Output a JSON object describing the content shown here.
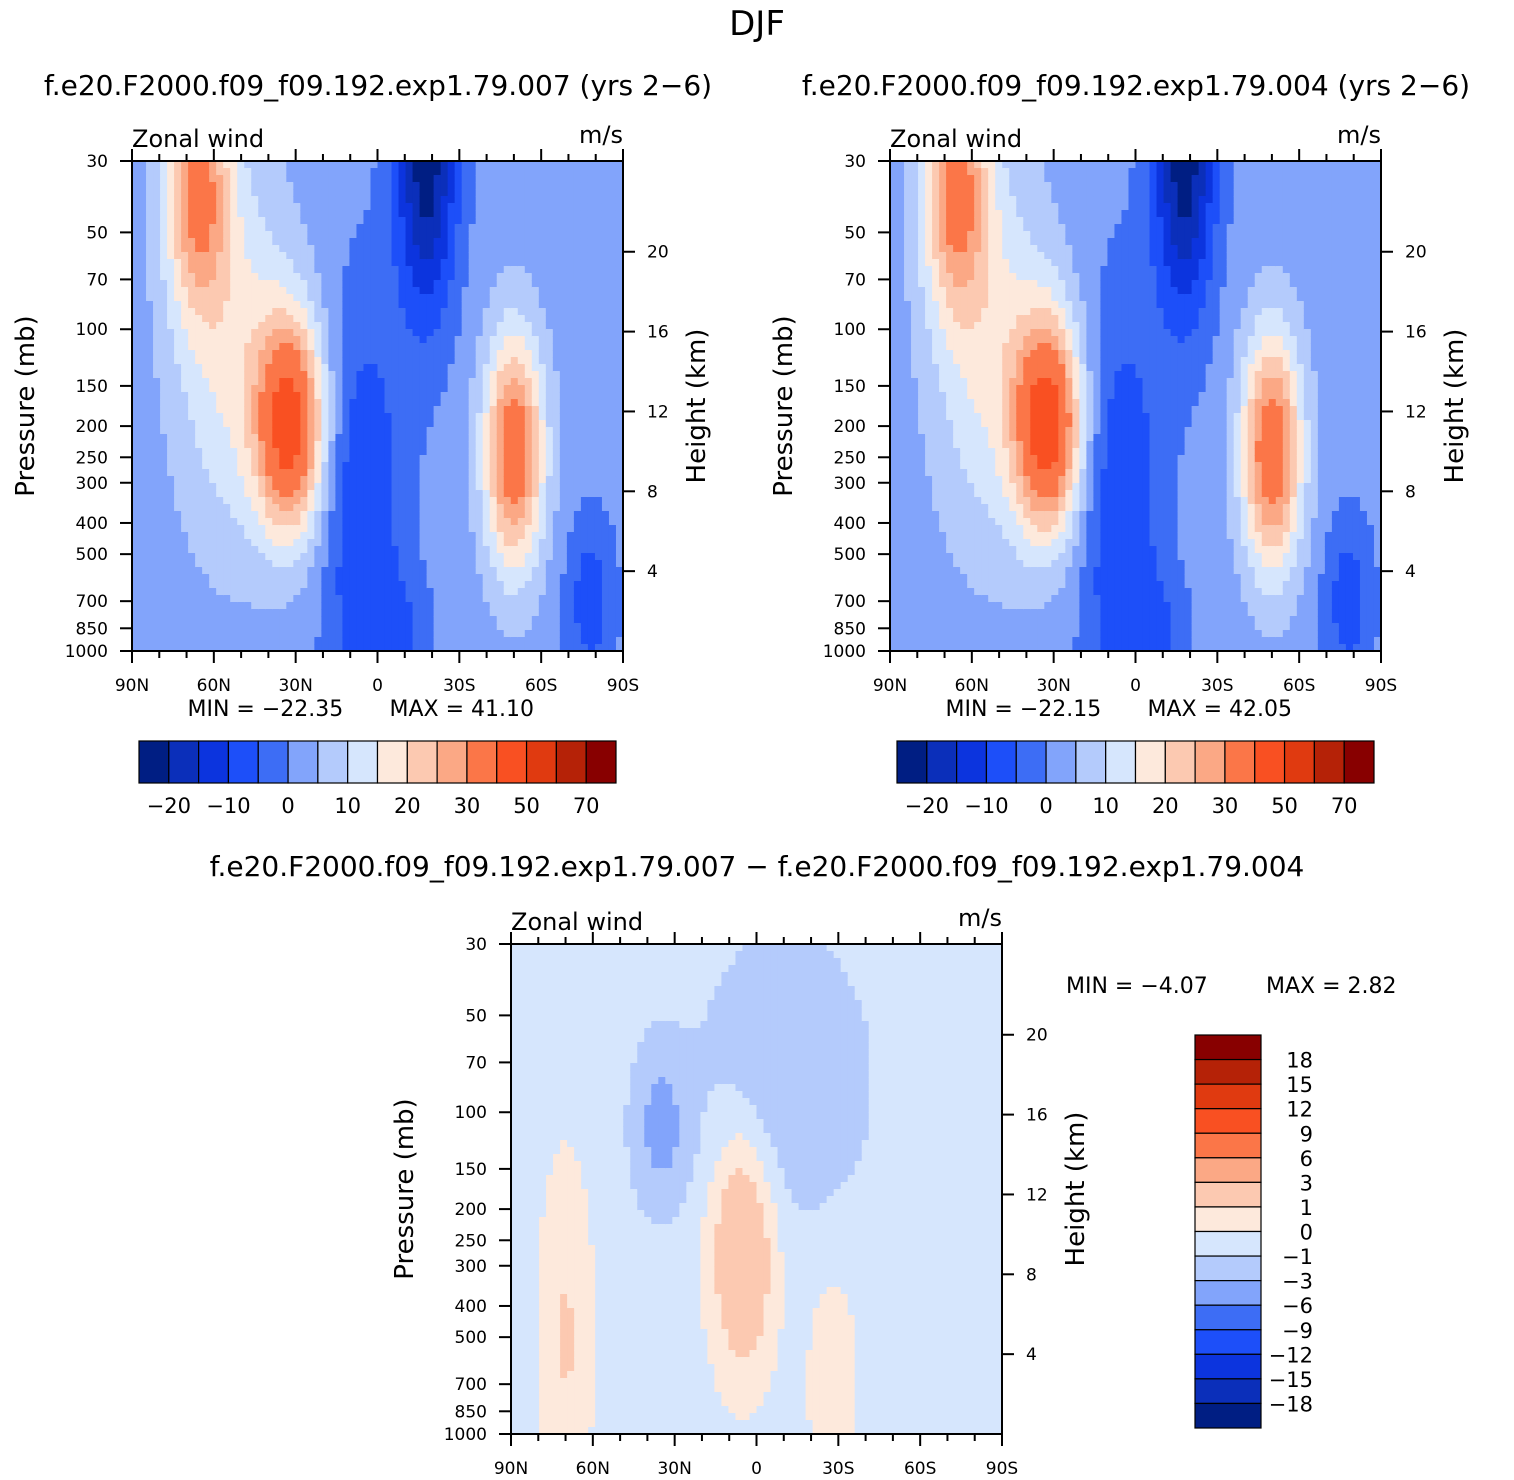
{
  "page_title": "DJF",
  "chart_data": [
    {
      "type": "contour",
      "title": "f.e20.F2000.f09_f09.192.exp1.79.007 (yrs 2-6)",
      "left_label": "Zonal wind",
      "right_label": "m/s",
      "xlabel": "",
      "ylabel": "Pressure (mb)",
      "y2label": "Height (km)",
      "x_ticks": [
        "90N",
        "60N",
        "30N",
        "0",
        "30S",
        "60S",
        "90S"
      ],
      "y_ticks": [
        30,
        50,
        70,
        100,
        150,
        200,
        250,
        300,
        400,
        500,
        700,
        850,
        1000
      ],
      "y2_ticks": [
        20,
        16,
        12,
        8,
        4
      ],
      "min_label": "MIN =",
      "min": "-22.35",
      "max_label": "MAX =",
      "max": "41.10",
      "contour_levels": [
        -25,
        -20,
        -15,
        -10,
        -5,
        0,
        5,
        10,
        15,
        20,
        25,
        30,
        40,
        50,
        60,
        70,
        80
      ],
      "colorbar_labels": [
        "-20",
        "-10",
        "0",
        "10",
        "20",
        "30",
        "50",
        "70"
      ],
      "features": [
        {
          "kind": "jet",
          "lat": 32,
          "p": 200,
          "value": 41.1
        },
        {
          "kind": "jet",
          "lat": -50,
          "p": 250,
          "value": 35
        },
        {
          "kind": "jet",
          "lat": 65,
          "p": 35,
          "value": 30
        },
        {
          "kind": "easterly",
          "lat": -18,
          "p": 30,
          "value": -22.35
        }
      ],
      "colors": [
        "#001e83",
        "#0b2fba",
        "#0c34de",
        "#1d4ff9",
        "#3d6df5",
        "#82a4fb",
        "#b4cbfc",
        "#d6e6fd",
        "#fde9dc",
        "#fcc9b1",
        "#fba885",
        "#fb7648",
        "#f95022",
        "#e03a10",
        "#b52207",
        "#880000"
      ]
    },
    {
      "type": "contour",
      "title": "f.e20.F2000.f09_f09.192.exp1.79.004 (yrs 2-6)",
      "left_label": "Zonal wind",
      "right_label": "m/s",
      "xlabel": "",
      "ylabel": "Pressure (mb)",
      "y2label": "Height (km)",
      "x_ticks": [
        "90N",
        "60N",
        "30N",
        "0",
        "30S",
        "60S",
        "90S"
      ],
      "y_ticks": [
        30,
        50,
        70,
        100,
        150,
        200,
        250,
        300,
        400,
        500,
        700,
        850,
        1000
      ],
      "y2_ticks": [
        20,
        16,
        12,
        8,
        4
      ],
      "min_label": "MIN =",
      "min": "-22.15",
      "max_label": "MAX =",
      "max": "42.05",
      "contour_levels": [
        -25,
        -20,
        -15,
        -10,
        -5,
        0,
        5,
        10,
        15,
        20,
        25,
        30,
        40,
        50,
        60,
        70,
        80
      ],
      "colorbar_labels": [
        "-20",
        "-10",
        "0",
        "10",
        "20",
        "30",
        "50",
        "70"
      ],
      "features": [
        {
          "kind": "jet",
          "lat": 32,
          "p": 200,
          "value": 42.05
        },
        {
          "kind": "jet",
          "lat": -50,
          "p": 220,
          "value": 37
        },
        {
          "kind": "jet",
          "lat": 65,
          "p": 35,
          "value": 32
        },
        {
          "kind": "easterly",
          "lat": -18,
          "p": 30,
          "value": -22.15
        }
      ],
      "colors": [
        "#001e83",
        "#0b2fba",
        "#0c34de",
        "#1d4ff9",
        "#3d6df5",
        "#82a4fb",
        "#b4cbfc",
        "#d6e6fd",
        "#fde9dc",
        "#fcc9b1",
        "#fba885",
        "#fb7648",
        "#f95022",
        "#e03a10",
        "#b52207",
        "#880000"
      ]
    },
    {
      "type": "contour",
      "title": "f.e20.F2000.f09_f09.192.exp1.79.007 - f.e20.F2000.f09_f09.192.exp1.79.004",
      "left_label": "Zonal wind",
      "right_label": "m/s",
      "xlabel": "",
      "ylabel": "Pressure (mb)",
      "y2label": "Height (km)",
      "x_ticks": [
        "90N",
        "60N",
        "30N",
        "0",
        "30S",
        "60S",
        "90S"
      ],
      "y_ticks": [
        30,
        50,
        70,
        100,
        150,
        200,
        250,
        300,
        400,
        500,
        700,
        850,
        1000
      ],
      "y2_ticks": [
        20,
        16,
        12,
        8,
        4
      ],
      "min_label": "MIN =",
      "min": "-4.07",
      "max_label": "MAX =",
      "max": "2.82",
      "contour_levels": [
        -18,
        -15,
        -12,
        -9,
        -6,
        -3,
        -1,
        0,
        1,
        3,
        6,
        9,
        12,
        15,
        18
      ],
      "colorbar_labels": [
        "18",
        "15",
        "12",
        "9",
        "6",
        "3",
        "1",
        "0",
        "-1",
        "-3",
        "-6",
        "-9",
        "-12",
        "-15",
        "-18"
      ],
      "features": [
        {
          "kind": "positive",
          "lat": 5,
          "p": 250,
          "value": 2.82
        },
        {
          "kind": "negative",
          "lat": 35,
          "p": 100,
          "value": -4.07
        }
      ],
      "colors": [
        "#880000",
        "#b52207",
        "#e03a10",
        "#f95022",
        "#fb7648",
        "#fba885",
        "#fcc9b1",
        "#fde9dc",
        "#d6e6fd",
        "#b4cbfc",
        "#82a4fb",
        "#3d6df5",
        "#1d4ff9",
        "#0c34de",
        "#0b2fba",
        "#001e83"
      ]
    }
  ]
}
